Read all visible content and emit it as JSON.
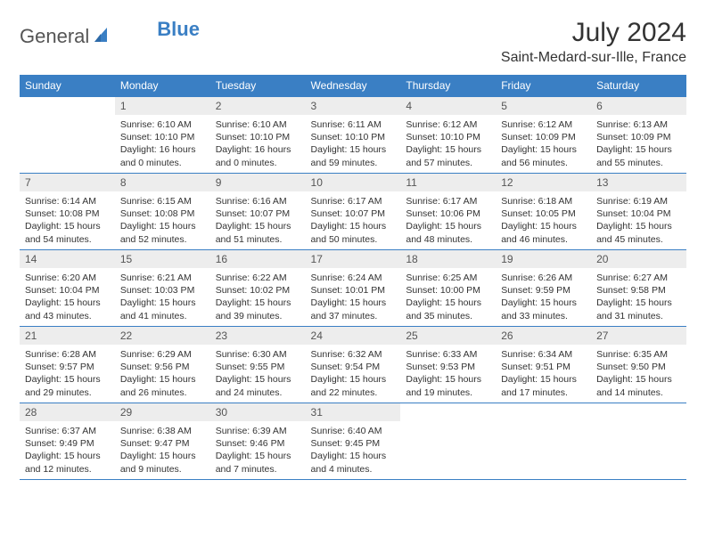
{
  "logo": {
    "text_general": "General",
    "text_blue": "Blue"
  },
  "title": "July 2024",
  "location": "Saint-Medard-sur-Ille, France",
  "colors": {
    "header_blue": "#3a7fc4",
    "daynum_bg": "#ededed",
    "text": "#333333",
    "background": "#ffffff"
  },
  "typography": {
    "title_fontsize": 30,
    "location_fontsize": 16,
    "header_fontsize": 12,
    "body_fontsize": 10.5
  },
  "weekdays": [
    "Sunday",
    "Monday",
    "Tuesday",
    "Wednesday",
    "Thursday",
    "Friday",
    "Saturday"
  ],
  "first_weekday_index": 1,
  "days": [
    {
      "n": 1,
      "sunrise": "6:10 AM",
      "sunset": "10:10 PM",
      "daylight": "16 hours and 0 minutes."
    },
    {
      "n": 2,
      "sunrise": "6:10 AM",
      "sunset": "10:10 PM",
      "daylight": "16 hours and 0 minutes."
    },
    {
      "n": 3,
      "sunrise": "6:11 AM",
      "sunset": "10:10 PM",
      "daylight": "15 hours and 59 minutes."
    },
    {
      "n": 4,
      "sunrise": "6:12 AM",
      "sunset": "10:10 PM",
      "daylight": "15 hours and 57 minutes."
    },
    {
      "n": 5,
      "sunrise": "6:12 AM",
      "sunset": "10:09 PM",
      "daylight": "15 hours and 56 minutes."
    },
    {
      "n": 6,
      "sunrise": "6:13 AM",
      "sunset": "10:09 PM",
      "daylight": "15 hours and 55 minutes."
    },
    {
      "n": 7,
      "sunrise": "6:14 AM",
      "sunset": "10:08 PM",
      "daylight": "15 hours and 54 minutes."
    },
    {
      "n": 8,
      "sunrise": "6:15 AM",
      "sunset": "10:08 PM",
      "daylight": "15 hours and 52 minutes."
    },
    {
      "n": 9,
      "sunrise": "6:16 AM",
      "sunset": "10:07 PM",
      "daylight": "15 hours and 51 minutes."
    },
    {
      "n": 10,
      "sunrise": "6:17 AM",
      "sunset": "10:07 PM",
      "daylight": "15 hours and 50 minutes."
    },
    {
      "n": 11,
      "sunrise": "6:17 AM",
      "sunset": "10:06 PM",
      "daylight": "15 hours and 48 minutes."
    },
    {
      "n": 12,
      "sunrise": "6:18 AM",
      "sunset": "10:05 PM",
      "daylight": "15 hours and 46 minutes."
    },
    {
      "n": 13,
      "sunrise": "6:19 AM",
      "sunset": "10:04 PM",
      "daylight": "15 hours and 45 minutes."
    },
    {
      "n": 14,
      "sunrise": "6:20 AM",
      "sunset": "10:04 PM",
      "daylight": "15 hours and 43 minutes."
    },
    {
      "n": 15,
      "sunrise": "6:21 AM",
      "sunset": "10:03 PM",
      "daylight": "15 hours and 41 minutes."
    },
    {
      "n": 16,
      "sunrise": "6:22 AM",
      "sunset": "10:02 PM",
      "daylight": "15 hours and 39 minutes."
    },
    {
      "n": 17,
      "sunrise": "6:24 AM",
      "sunset": "10:01 PM",
      "daylight": "15 hours and 37 minutes."
    },
    {
      "n": 18,
      "sunrise": "6:25 AM",
      "sunset": "10:00 PM",
      "daylight": "15 hours and 35 minutes."
    },
    {
      "n": 19,
      "sunrise": "6:26 AM",
      "sunset": "9:59 PM",
      "daylight": "15 hours and 33 minutes."
    },
    {
      "n": 20,
      "sunrise": "6:27 AM",
      "sunset": "9:58 PM",
      "daylight": "15 hours and 31 minutes."
    },
    {
      "n": 21,
      "sunrise": "6:28 AM",
      "sunset": "9:57 PM",
      "daylight": "15 hours and 29 minutes."
    },
    {
      "n": 22,
      "sunrise": "6:29 AM",
      "sunset": "9:56 PM",
      "daylight": "15 hours and 26 minutes."
    },
    {
      "n": 23,
      "sunrise": "6:30 AM",
      "sunset": "9:55 PM",
      "daylight": "15 hours and 24 minutes."
    },
    {
      "n": 24,
      "sunrise": "6:32 AM",
      "sunset": "9:54 PM",
      "daylight": "15 hours and 22 minutes."
    },
    {
      "n": 25,
      "sunrise": "6:33 AM",
      "sunset": "9:53 PM",
      "daylight": "15 hours and 19 minutes."
    },
    {
      "n": 26,
      "sunrise": "6:34 AM",
      "sunset": "9:51 PM",
      "daylight": "15 hours and 17 minutes."
    },
    {
      "n": 27,
      "sunrise": "6:35 AM",
      "sunset": "9:50 PM",
      "daylight": "15 hours and 14 minutes."
    },
    {
      "n": 28,
      "sunrise": "6:37 AM",
      "sunset": "9:49 PM",
      "daylight": "15 hours and 12 minutes."
    },
    {
      "n": 29,
      "sunrise": "6:38 AM",
      "sunset": "9:47 PM",
      "daylight": "15 hours and 9 minutes."
    },
    {
      "n": 30,
      "sunrise": "6:39 AM",
      "sunset": "9:46 PM",
      "daylight": "15 hours and 7 minutes."
    },
    {
      "n": 31,
      "sunrise": "6:40 AM",
      "sunset": "9:45 PM",
      "daylight": "15 hours and 4 minutes."
    }
  ],
  "labels": {
    "sunrise": "Sunrise:",
    "sunset": "Sunset:",
    "daylight": "Daylight:"
  }
}
